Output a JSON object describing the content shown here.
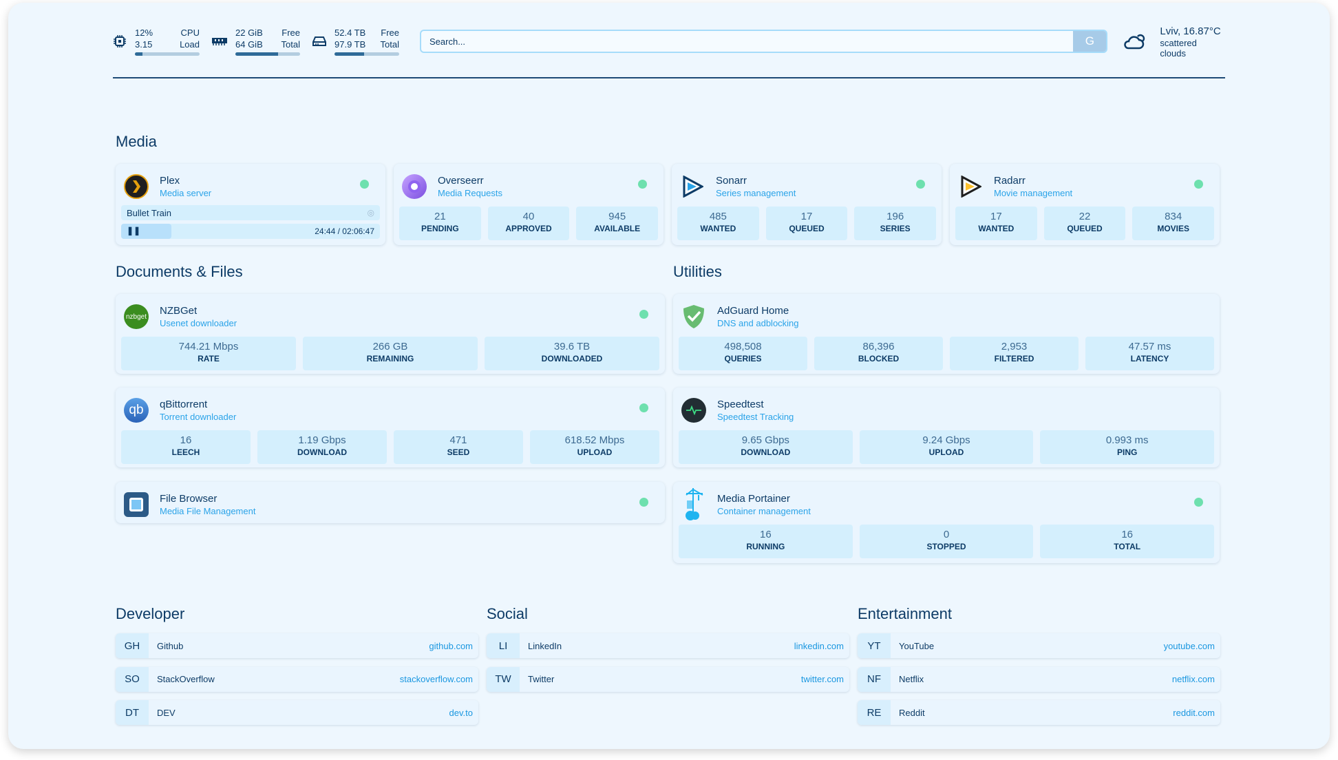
{
  "header": {
    "cpu": {
      "value": "12%",
      "label": "CPU",
      "load": "3.15",
      "load_label": "Load",
      "percent": 12
    },
    "memory": {
      "free": "22 GiB",
      "free_label": "Free",
      "total": "64 GiB",
      "total_label": "Total",
      "percent": 66
    },
    "disk": {
      "free": "52.4 TB",
      "free_label": "Free",
      "total": "97.9 TB",
      "total_label": "Total",
      "percent": 46
    },
    "search": {
      "placeholder": "Search...",
      "button": "G"
    },
    "weather": {
      "location": "Lviv, 16.87°C",
      "condition": "scattered clouds",
      "icon": "cloud-sun-icon"
    }
  },
  "sections": {
    "media": "Media",
    "docs": "Documents & Files",
    "utilities": "Utilities",
    "developer": "Developer",
    "social": "Social",
    "entertainment": "Entertainment"
  },
  "media": [
    {
      "name": "Plex",
      "sub": "Media server",
      "now_playing": "Bullet Train",
      "time": "24:44 / 02:06:47",
      "progress": 19.5
    },
    {
      "name": "Overseerr",
      "sub": "Media Requests",
      "stats": [
        {
          "v": "21",
          "l": "PENDING"
        },
        {
          "v": "40",
          "l": "APPROVED"
        },
        {
          "v": "945",
          "l": "AVAILABLE"
        }
      ]
    },
    {
      "name": "Sonarr",
      "sub": "Series management",
      "stats": [
        {
          "v": "485",
          "l": "WANTED"
        },
        {
          "v": "17",
          "l": "QUEUED"
        },
        {
          "v": "196",
          "l": "SERIES"
        }
      ]
    },
    {
      "name": "Radarr",
      "sub": "Movie management",
      "stats": [
        {
          "v": "17",
          "l": "WANTED"
        },
        {
          "v": "22",
          "l": "QUEUED"
        },
        {
          "v": "834",
          "l": "MOVIES"
        }
      ]
    }
  ],
  "docs": [
    {
      "name": "NZBGet",
      "sub": "Usenet downloader",
      "logo": "nzbget",
      "stats": [
        {
          "v": "744.21 Mbps",
          "l": "RATE"
        },
        {
          "v": "266 GB",
          "l": "REMAINING"
        },
        {
          "v": "39.6 TB",
          "l": "DOWNLOADED"
        }
      ]
    },
    {
      "name": "qBittorrent",
      "sub": "Torrent downloader",
      "logo": "qb",
      "stats": [
        {
          "v": "16",
          "l": "LEECH"
        },
        {
          "v": "1.19 Gbps",
          "l": "DOWNLOAD"
        },
        {
          "v": "471",
          "l": "SEED"
        },
        {
          "v": "618.52 Mbps",
          "l": "UPLOAD"
        }
      ]
    },
    {
      "name": "File Browser",
      "sub": "Media File Management"
    }
  ],
  "utilities": [
    {
      "name": "AdGuard Home",
      "sub": "DNS and adblocking",
      "stats": [
        {
          "v": "498,508",
          "l": "QUERIES"
        },
        {
          "v": "86,396",
          "l": "BLOCKED"
        },
        {
          "v": "2,953",
          "l": "FILTERED"
        },
        {
          "v": "47.57 ms",
          "l": "LATENCY"
        }
      ]
    },
    {
      "name": "Speedtest",
      "sub": "Speedtest Tracking",
      "stats": [
        {
          "v": "9.65 Gbps",
          "l": "DOWNLOAD"
        },
        {
          "v": "9.24 Gbps",
          "l": "UPLOAD"
        },
        {
          "v": "0.993 ms",
          "l": "PING"
        }
      ]
    },
    {
      "name": "Media Portainer",
      "sub": "Container management",
      "stats": [
        {
          "v": "16",
          "l": "RUNNING"
        },
        {
          "v": "0",
          "l": "STOPPED"
        },
        {
          "v": "16",
          "l": "TOTAL"
        }
      ]
    }
  ],
  "bookmarks": {
    "developer": [
      {
        "abbr": "GH",
        "name": "Github",
        "url": "github.com"
      },
      {
        "abbr": "SO",
        "name": "StackOverflow",
        "url": "stackoverflow.com"
      },
      {
        "abbr": "DT",
        "name": "DEV",
        "url": "dev.to"
      }
    ],
    "social": [
      {
        "abbr": "LI",
        "name": "LinkedIn",
        "url": "linkedin.com"
      },
      {
        "abbr": "TW",
        "name": "Twitter",
        "url": "twitter.com"
      }
    ],
    "entertainment": [
      {
        "abbr": "YT",
        "name": "YouTube",
        "url": "youtube.com"
      },
      {
        "abbr": "NF",
        "name": "Netflix",
        "url": "netflix.com"
      },
      {
        "abbr": "RE",
        "name": "Reddit",
        "url": "reddit.com"
      }
    ]
  },
  "colors": {
    "accent": "#2aa3e8",
    "text": "#0d3b66",
    "status_up": "#6ee0ae",
    "stat_bg": "#d4effd"
  }
}
